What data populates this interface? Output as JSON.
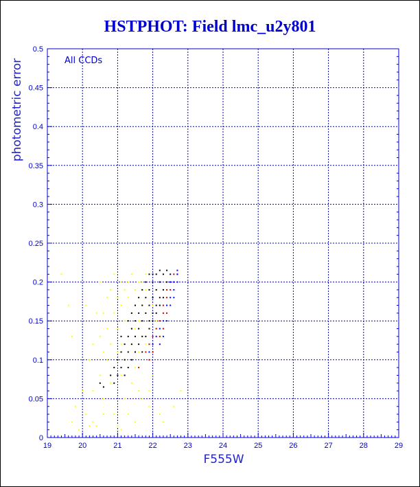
{
  "chart_data": {
    "type": "scatter",
    "title": "HSTPHOT: Field lmc_u2y801",
    "xlabel": "F555W",
    "ylabel": "photometric error",
    "annotation": "All CCDs",
    "xlim": [
      19,
      29
    ],
    "ylim": [
      0,
      0.5
    ],
    "xticks": [
      "19",
      "20",
      "21",
      "22",
      "23",
      "24",
      "25",
      "26",
      "27",
      "28",
      "29"
    ],
    "yticks": [
      "0",
      "0.05",
      "0.1",
      "0.15",
      "0.2",
      "0.25",
      "0.3",
      "0.35",
      "0.4",
      "0.45",
      "0.5"
    ],
    "grid": true,
    "series": [
      {
        "color": "#ffff00",
        "points": [
          [
            19.4,
            0.21
          ],
          [
            19.6,
            0.17
          ],
          [
            19.7,
            0.13
          ],
          [
            19.8,
            0.04
          ],
          [
            19.7,
            0.02
          ],
          [
            19.9,
            0.01
          ],
          [
            20.0,
            0.06
          ],
          [
            20.1,
            0.03
          ],
          [
            20.2,
            0.015
          ],
          [
            20.3,
            0.12
          ],
          [
            20.3,
            0.02
          ],
          [
            20.4,
            0.16
          ],
          [
            20.4,
            0.015
          ],
          [
            20.5,
            0.08
          ],
          [
            20.5,
            0.13
          ],
          [
            20.6,
            0.16
          ],
          [
            20.6,
            0.05
          ],
          [
            20.6,
            0.03
          ],
          [
            20.7,
            0.1
          ],
          [
            20.7,
            0.18
          ],
          [
            20.7,
            0.14
          ],
          [
            20.8,
            0.12
          ],
          [
            20.8,
            0.19
          ],
          [
            20.8,
            0.07
          ],
          [
            20.9,
            0.16
          ],
          [
            20.9,
            0.03
          ],
          [
            20.9,
            0.21
          ],
          [
            21.0,
            0.11
          ],
          [
            21.0,
            0.18
          ],
          [
            21.0,
            0.015
          ],
          [
            21.0,
            0.14
          ],
          [
            21.1,
            0.2
          ],
          [
            21.1,
            0.12
          ],
          [
            21.1,
            0.17
          ],
          [
            21.1,
            0.01
          ],
          [
            21.2,
            0.15
          ],
          [
            21.2,
            0.19
          ],
          [
            21.2,
            0.1
          ],
          [
            21.3,
            0.18
          ],
          [
            21.3,
            0.2
          ],
          [
            21.3,
            0.13
          ],
          [
            21.3,
            0.03
          ],
          [
            21.4,
            0.16
          ],
          [
            21.4,
            0.21
          ],
          [
            21.4,
            0.12
          ],
          [
            21.5,
            0.19
          ],
          [
            21.5,
            0.14
          ],
          [
            21.5,
            0.09
          ],
          [
            21.5,
            0.02
          ],
          [
            21.6,
            0.18
          ],
          [
            21.6,
            0.2
          ],
          [
            21.6,
            0.15
          ],
          [
            21.6,
            0.11
          ],
          [
            21.7,
            0.2
          ],
          [
            21.7,
            0.17
          ],
          [
            21.7,
            0.13
          ],
          [
            21.7,
            0.05
          ],
          [
            21.8,
            0.19
          ],
          [
            21.8,
            0.21
          ],
          [
            21.8,
            0.16
          ],
          [
            21.8,
            0.12
          ],
          [
            21.9,
            0.19
          ],
          [
            21.9,
            0.14
          ],
          [
            21.9,
            0.04
          ],
          [
            22.0,
            0.2
          ],
          [
            22.0,
            0.17
          ],
          [
            22.0,
            0.08
          ],
          [
            22.1,
            0.19
          ],
          [
            22.1,
            0.15
          ],
          [
            22.2,
            0.03
          ],
          [
            20.2,
            0.1
          ],
          [
            20.5,
            0.2
          ],
          [
            20.9,
            0.09
          ],
          [
            21.2,
            0.05
          ],
          [
            21.4,
            0.07
          ],
          [
            21.1,
            0.08
          ],
          [
            21.6,
            0.06
          ],
          [
            20.3,
            0.06
          ],
          [
            22.3,
            0.02
          ],
          [
            22.8,
            0.06
          ],
          [
            22.6,
            0.04
          ],
          [
            21.9,
            0.06
          ],
          [
            20.1,
            0.17
          ],
          [
            20.6,
            0.11
          ]
        ]
      },
      {
        "color": "#000000",
        "points": [
          [
            20.5,
            0.07
          ],
          [
            20.6,
            0.065
          ],
          [
            20.8,
            0.08
          ],
          [
            20.9,
            0.09
          ],
          [
            20.9,
            0.07
          ],
          [
            21.0,
            0.08
          ],
          [
            21.0,
            0.1
          ],
          [
            21.1,
            0.09
          ],
          [
            21.1,
            0.11
          ],
          [
            21.2,
            0.1
          ],
          [
            21.2,
            0.12
          ],
          [
            21.3,
            0.11
          ],
          [
            21.3,
            0.13
          ],
          [
            21.3,
            0.15
          ],
          [
            21.4,
            0.12
          ],
          [
            21.4,
            0.14
          ],
          [
            21.4,
            0.16
          ],
          [
            21.5,
            0.13
          ],
          [
            21.5,
            0.15
          ],
          [
            21.5,
            0.17
          ],
          [
            21.6,
            0.14
          ],
          [
            21.6,
            0.16
          ],
          [
            21.6,
            0.18
          ],
          [
            21.7,
            0.15
          ],
          [
            21.7,
            0.17
          ],
          [
            21.7,
            0.19
          ],
          [
            21.8,
            0.13
          ],
          [
            21.8,
            0.16
          ],
          [
            21.8,
            0.18
          ],
          [
            21.8,
            0.2
          ],
          [
            21.9,
            0.15
          ],
          [
            21.9,
            0.17
          ],
          [
            21.9,
            0.19
          ],
          [
            21.9,
            0.21
          ],
          [
            22.0,
            0.16
          ],
          [
            22.0,
            0.18
          ],
          [
            22.0,
            0.2
          ],
          [
            22.0,
            0.21
          ],
          [
            22.1,
            0.17
          ],
          [
            22.1,
            0.19
          ],
          [
            22.1,
            0.21
          ],
          [
            22.2,
            0.18
          ],
          [
            22.2,
            0.2
          ],
          [
            22.2,
            0.215
          ],
          [
            22.3,
            0.19
          ],
          [
            22.3,
            0.21
          ],
          [
            22.4,
            0.2
          ],
          [
            22.4,
            0.215
          ],
          [
            22.5,
            0.21
          ],
          [
            21.2,
            0.08
          ],
          [
            21.3,
            0.09
          ],
          [
            21.5,
            0.11
          ],
          [
            21.6,
            0.12
          ],
          [
            21.7,
            0.13
          ],
          [
            21.9,
            0.14
          ],
          [
            22.0,
            0.15
          ],
          [
            22.1,
            0.16
          ],
          [
            21.1,
            0.13
          ],
          [
            21.4,
            0.1
          ],
          [
            21.7,
            0.11
          ],
          [
            22.2,
            0.17
          ],
          [
            22.3,
            0.18
          ]
        ]
      },
      {
        "color": "#cc0000",
        "points": [
          [
            21.6,
            0.09
          ],
          [
            21.8,
            0.11
          ],
          [
            21.9,
            0.12
          ],
          [
            22.0,
            0.13
          ],
          [
            22.1,
            0.14
          ],
          [
            22.2,
            0.15
          ],
          [
            22.3,
            0.16
          ],
          [
            22.3,
            0.17
          ],
          [
            22.4,
            0.18
          ],
          [
            22.4,
            0.19
          ],
          [
            22.5,
            0.2
          ],
          [
            22.5,
            0.19
          ],
          [
            22.6,
            0.21
          ],
          [
            22.2,
            0.13
          ],
          [
            22.0,
            0.11
          ],
          [
            21.9,
            0.1
          ],
          [
            22.4,
            0.16
          ],
          [
            22.6,
            0.2
          ],
          [
            22.7,
            0.21
          ],
          [
            22.3,
            0.14
          ]
        ]
      },
      {
        "color": "#0000ff",
        "points": [
          [
            21.9,
            0.11
          ],
          [
            22.0,
            0.12
          ],
          [
            22.1,
            0.13
          ],
          [
            22.2,
            0.14
          ],
          [
            22.3,
            0.15
          ],
          [
            22.4,
            0.17
          ],
          [
            22.5,
            0.18
          ],
          [
            22.5,
            0.17
          ],
          [
            22.6,
            0.19
          ],
          [
            22.6,
            0.2
          ],
          [
            22.7,
            0.21
          ],
          [
            22.7,
            0.215
          ],
          [
            22.5,
            0.2
          ],
          [
            22.4,
            0.15
          ],
          [
            22.2,
            0.12
          ],
          [
            22.6,
            0.18
          ],
          [
            22.7,
            0.2
          ],
          [
            22.3,
            0.13
          ]
        ]
      }
    ]
  }
}
